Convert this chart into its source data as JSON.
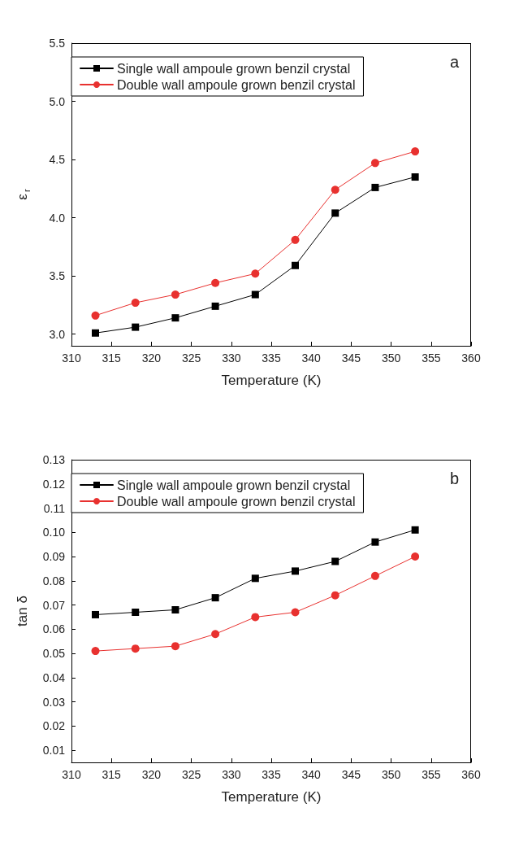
{
  "chart_data": [
    {
      "type": "line",
      "xlabel": "Temperature (K)",
      "ylabel": "ε$_{r}$",
      "annotations": [
        "a"
      ],
      "x": [
        313,
        318,
        323,
        328,
        333,
        338,
        343,
        348,
        353
      ],
      "series": [
        {
          "name": "Single wall ampoule grown benzil crystal",
          "color": "#000000",
          "marker": "square",
          "values": [
            3.01,
            3.06,
            3.14,
            3.24,
            3.34,
            3.59,
            4.04,
            4.26,
            4.35
          ]
        },
        {
          "name": "Double wall ampoule grown benzil crystal",
          "color": "#e8312f",
          "marker": "circle",
          "values": [
            3.16,
            3.27,
            3.34,
            3.44,
            3.52,
            3.81,
            4.24,
            4.47,
            4.57
          ]
        }
      ],
      "xlim": [
        310,
        360
      ],
      "xticks": [
        310,
        315,
        320,
        325,
        330,
        335,
        340,
        345,
        350,
        355,
        360
      ],
      "ylim": [
        2.9,
        5.5
      ],
      "yticks": [
        {
          "value": 3,
          "label": "3.0"
        },
        3.5,
        {
          "value": 4,
          "label": "4.0"
        },
        4.5,
        {
          "value": 5,
          "label": "5.0"
        },
        5.5
      ],
      "grid": false,
      "legend": "top left"
    },
    {
      "type": "line",
      "xlabel": "Temperature (K)",
      "ylabel": "tan δ",
      "annotations": [
        "b"
      ],
      "x": [
        313,
        318,
        323,
        328,
        333,
        338,
        343,
        348,
        353
      ],
      "series": [
        {
          "name": "Single wall ampoule grown benzil crystal",
          "color": "#000000",
          "marker": "square",
          "values": [
            0.066,
            0.067,
            0.068,
            0.073,
            0.081,
            0.084,
            0.088,
            0.096,
            0.101
          ]
        },
        {
          "name": "Double wall ampoule grown benzil crystal",
          "color": "#e8312f",
          "marker": "circle",
          "values": [
            0.051,
            0.052,
            0.053,
            0.058,
            0.065,
            0.067,
            0.074,
            0.082,
            0.09
          ]
        }
      ],
      "xlim": [
        310,
        360
      ],
      "xticks": [
        310,
        315,
        320,
        325,
        330,
        335,
        340,
        345,
        350,
        355,
        360
      ],
      "ylim": [
        0.005,
        0.13
      ],
      "yticks": [
        0.01,
        0.02,
        0.03,
        0.04,
        0.05,
        0.06,
        0.07,
        0.08,
        0.09,
        {
          "value": 0.1,
          "label": "0.10"
        },
        0.11,
        0.12,
        0.13
      ],
      "grid": false,
      "legend": "top left"
    }
  ]
}
